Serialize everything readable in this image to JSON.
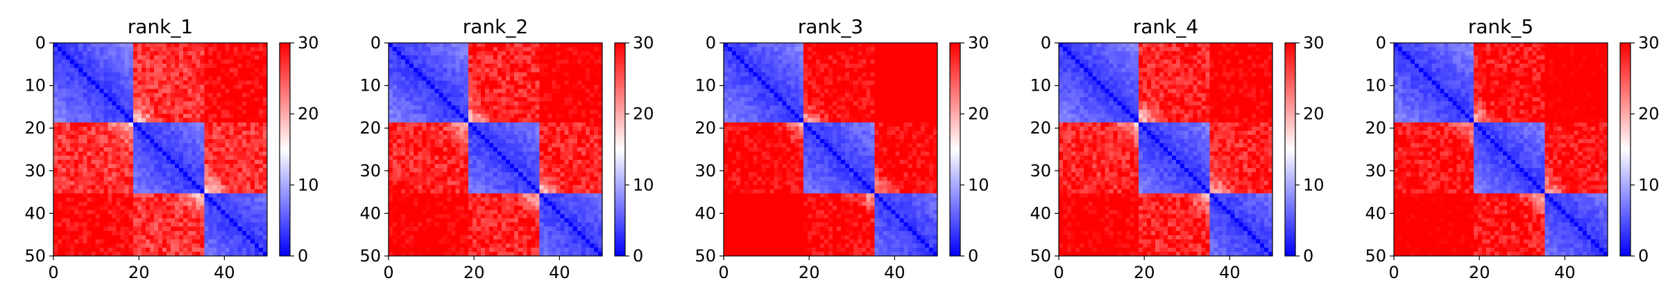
{
  "chart_data": [
    {
      "type": "heatmap",
      "title": "rank_1",
      "rows": 51,
      "cols": 51,
      "x_ticks": [
        "0",
        "20",
        "40"
      ],
      "y_ticks": [
        "0",
        "10",
        "20",
        "30",
        "40",
        "50"
      ],
      "colorbar": {
        "min": 0,
        "max": 30,
        "ticks": [
          "0",
          "10",
          "20",
          "30"
        ],
        "colormap": "bwr"
      },
      "domains": [
        [
          0,
          18
        ],
        [
          19,
          35
        ],
        [
          36,
          50
        ]
      ],
      "intra": 2,
      "inter": 25
    },
    {
      "type": "heatmap",
      "title": "rank_2",
      "rows": 51,
      "cols": 51,
      "x_ticks": [
        "0",
        "20",
        "40"
      ],
      "y_ticks": [
        "0",
        "10",
        "20",
        "30",
        "40",
        "50"
      ],
      "colorbar": {
        "min": 0,
        "max": 30,
        "ticks": [
          "0",
          "10",
          "20",
          "30"
        ],
        "colormap": "bwr"
      },
      "domains": [
        [
          0,
          18
        ],
        [
          19,
          35
        ],
        [
          36,
          50
        ]
      ],
      "intra": 2,
      "inter": 26
    },
    {
      "type": "heatmap",
      "title": "rank_3",
      "rows": 51,
      "cols": 51,
      "x_ticks": [
        "0",
        "20",
        "40"
      ],
      "y_ticks": [
        "0",
        "10",
        "20",
        "30",
        "40",
        "50"
      ],
      "colorbar": {
        "min": 0,
        "max": 30,
        "ticks": [
          "0",
          "10",
          "20",
          "30"
        ],
        "colormap": "bwr"
      },
      "domains": [
        [
          0,
          18
        ],
        [
          19,
          35
        ],
        [
          36,
          50
        ]
      ],
      "intra": 2,
      "inter": 28
    },
    {
      "type": "heatmap",
      "title": "rank_4",
      "rows": 51,
      "cols": 51,
      "x_ticks": [
        "0",
        "20",
        "40"
      ],
      "y_ticks": [
        "0",
        "10",
        "20",
        "30",
        "40",
        "50"
      ],
      "colorbar": {
        "min": 0,
        "max": 30,
        "ticks": [
          "0",
          "10",
          "20",
          "30"
        ],
        "colormap": "bwr"
      },
      "domains": [
        [
          0,
          18
        ],
        [
          19,
          35
        ],
        [
          36,
          50
        ]
      ],
      "intra": 2,
      "inter": 26
    },
    {
      "type": "heatmap",
      "title": "rank_5",
      "rows": 51,
      "cols": 51,
      "x_ticks": [
        "0",
        "20",
        "40"
      ],
      "y_ticks": [
        "0",
        "10",
        "20",
        "30",
        "40",
        "50"
      ],
      "colorbar": {
        "min": 0,
        "max": 30,
        "ticks": [
          "0",
          "10",
          "20",
          "30"
        ],
        "colormap": "bwr"
      },
      "domains": [
        [
          0,
          18
        ],
        [
          19,
          35
        ],
        [
          36,
          50
        ]
      ],
      "intra": 2,
      "inter": 27
    }
  ]
}
